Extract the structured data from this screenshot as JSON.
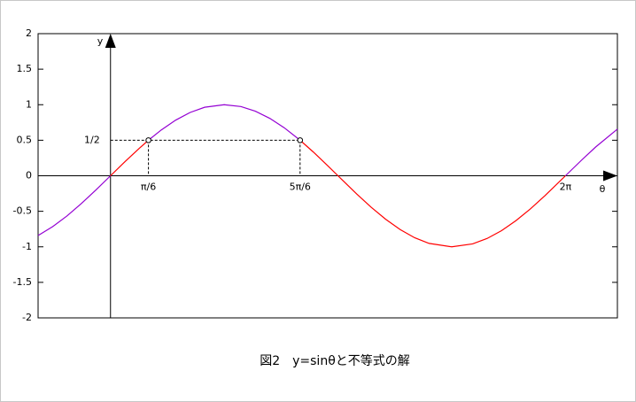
{
  "chart_data": {
    "type": "line",
    "title": "図2　y=sinθと不等式の解",
    "xlabel": "θ",
    "ylabel": "y",
    "xlim": [
      -1,
      7
    ],
    "ylim": [
      -2,
      2
    ],
    "yticks": [
      -2,
      -1.5,
      -1,
      -0.5,
      0,
      0.5,
      1,
      1.5,
      2
    ],
    "series": [
      {
        "color": "#9400d3",
        "x": [
          -1,
          -0.8,
          -0.6,
          -0.4,
          -0.2,
          0
        ],
        "values": [
          -0.841,
          -0.717,
          -0.565,
          -0.389,
          -0.199,
          0
        ]
      },
      {
        "color": "#ff0000",
        "x": [
          0,
          0.2,
          0.4,
          0.524
        ],
        "values": [
          0,
          0.199,
          0.389,
          0.5
        ]
      },
      {
        "color": "#9400d3",
        "x": [
          0.524,
          0.7,
          0.9,
          1.1,
          1.3,
          1.571,
          1.8,
          2.0,
          2.2,
          2.4,
          2.618
        ],
        "values": [
          0.5,
          0.644,
          0.783,
          0.891,
          0.964,
          1,
          0.974,
          0.909,
          0.808,
          0.675,
          0.5
        ]
      },
      {
        "color": "#ff0000",
        "x": [
          2.618,
          2.8,
          3.0,
          3.2,
          3.4,
          3.6,
          3.8,
          4.0,
          4.2,
          4.4,
          4.712,
          5.0,
          5.2,
          5.4,
          5.6,
          5.8,
          6.0,
          6.283
        ],
        "values": [
          0.5,
          0.335,
          0.141,
          -0.058,
          -0.256,
          -0.443,
          -0.612,
          -0.757,
          -0.872,
          -0.952,
          -1,
          -0.959,
          -0.883,
          -0.773,
          -0.631,
          -0.465,
          -0.279,
          0
        ]
      },
      {
        "color": "#9400d3",
        "x": [
          6.283,
          6.5,
          6.7,
          7
        ],
        "values": [
          0,
          0.215,
          0.405,
          0.657
        ]
      }
    ],
    "points": {
      "x": [
        0.524,
        2.618
      ],
      "values": [
        0.5,
        0.5
      ]
    },
    "x_labels": [
      {
        "value": 0.524,
        "label": "π/6"
      },
      {
        "value": 2.618,
        "label": "5π/6"
      },
      {
        "value": 6.283,
        "label": "2π"
      }
    ],
    "y_labels": [
      {
        "value": 0.5,
        "label": "1/2"
      }
    ]
  }
}
